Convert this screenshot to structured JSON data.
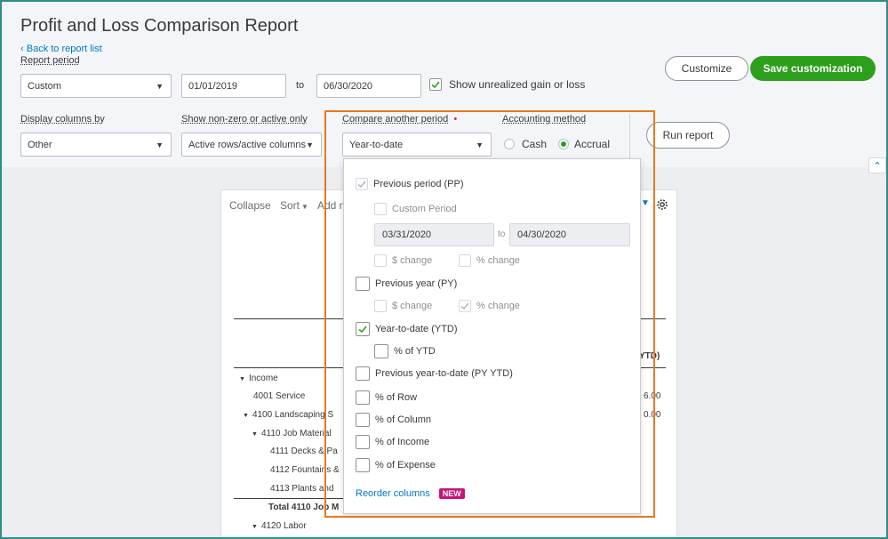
{
  "header": {
    "title": "Profit and Loss Comparison Report",
    "back_link": "Back to report list"
  },
  "filters": {
    "report_period_label": "Report period",
    "report_period_value": "Custom",
    "date_from": "01/01/2019",
    "to_label": "to",
    "date_to": "06/30/2020",
    "unrealized_label": "Show unrealized gain or loss",
    "display_columns_label": "Display columns by",
    "display_columns_value": "Other",
    "non_zero_label": "Show non-zero or active only",
    "non_zero_value": "Active rows/active columns",
    "compare_label": "Compare another period",
    "compare_required": "•",
    "compare_value": "Year-to-date",
    "accounting_label": "Accounting method",
    "cash_label": "Cash",
    "accrual_label": "Accrual"
  },
  "actions": {
    "customize": "Customize",
    "save_customization": "Save customization",
    "run_report": "Run report"
  },
  "report": {
    "collapse": "Collapse",
    "sort": "Sort",
    "add": "Add n",
    "col_header_partial": "YTD)",
    "rows": [
      {
        "label": "Income",
        "value": ""
      },
      {
        "label": "4001 Service",
        "value": "6.00"
      },
      {
        "label": "4100 Landscaping S",
        "value": "0.00"
      },
      {
        "label": "4110 Job Material",
        "value": ""
      },
      {
        "label": "4111 Decks & Pa",
        "value": ""
      },
      {
        "label": "4112 Fountains &",
        "value": ""
      },
      {
        "label": "4113 Plants and",
        "value": ""
      },
      {
        "label": "Total 4110 Job M",
        "value": ""
      },
      {
        "label": "4120 Labor",
        "value": ""
      }
    ]
  },
  "dropdown": {
    "previous_period": "Previous period (PP)",
    "custom_period": "Custom Period",
    "pp_from": "03/31/2020",
    "pp_to_label": "to",
    "pp_to": "04/30/2020",
    "dollar_change": "$ change",
    "percent_change": "% change",
    "previous_year": "Previous year (PY)",
    "py_dollar_change": "$ change",
    "py_percent_change": "% change",
    "ytd": "Year-to-date (YTD)",
    "pct_ytd": "% of YTD",
    "prev_ytd": "Previous year-to-date (PY YTD)",
    "pct_row": "% of Row",
    "pct_column": "% of Column",
    "pct_income": "% of Income",
    "pct_expense": "% of Expense",
    "reorder": "Reorder columns",
    "new_badge": "NEW"
  },
  "colors": {
    "accent_green": "#2ca01c",
    "link_blue": "#0077c5",
    "highlight_orange": "#e87722",
    "frame_teal": "#2d8f86",
    "badge_pink": "#c6137a"
  }
}
